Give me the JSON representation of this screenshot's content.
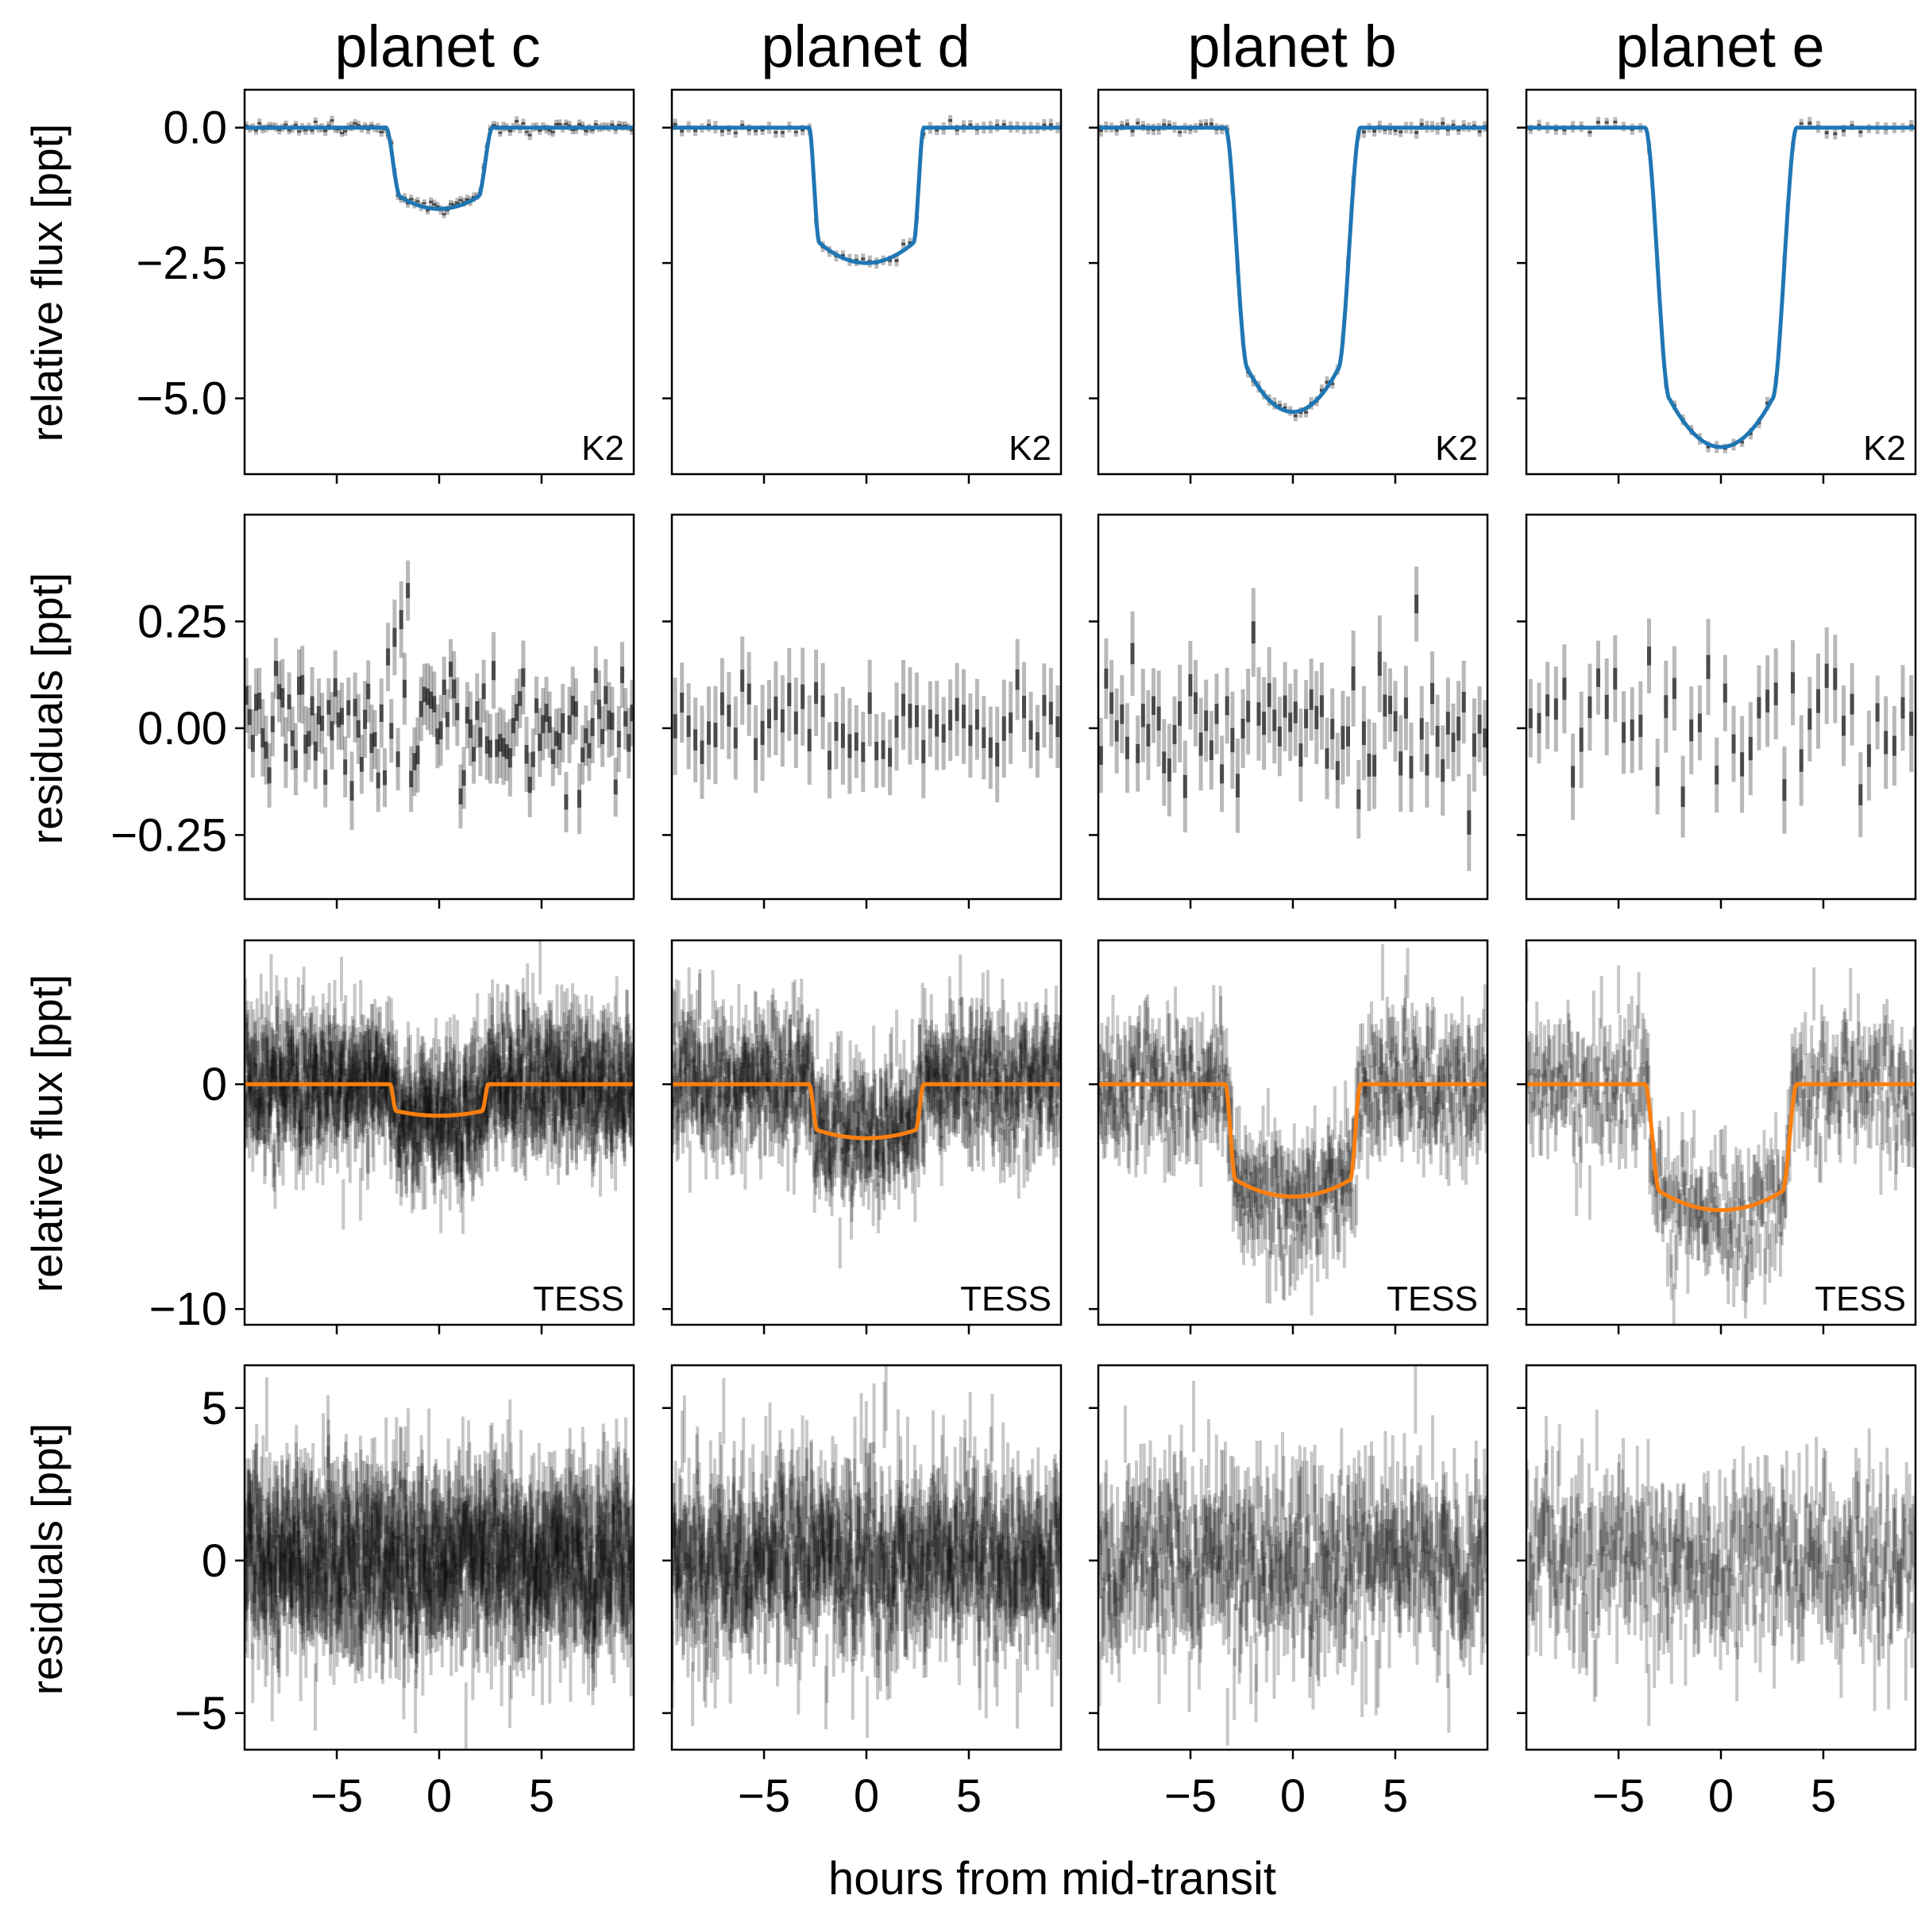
{
  "figure": {
    "xlabel": "hours from mid-transit",
    "columns": [
      "planet c",
      "planet d",
      "planet b",
      "planet e"
    ],
    "row_ylabels": [
      "relative flux [ppt]",
      "residuals [ppt]",
      "relative flux [ppt]",
      "residuals [ppt]"
    ],
    "row_instruments": [
      "K2",
      "",
      "TESS",
      ""
    ],
    "xlim": [
      -9.5,
      9.5
    ],
    "xticks": [
      -5,
      0,
      5
    ],
    "xtick_labels": [
      "−5",
      "0",
      "5"
    ],
    "model_colors": {
      "K2": "#1f77b4",
      "TESS": "#ff7f0e"
    },
    "data_color": "#000000"
  },
  "chart_data": [
    {
      "type": "line",
      "title": "planet c",
      "panel": "K2 transit",
      "instrument": "K2",
      "ylabel": "relative flux [ppt]",
      "xlabel": "",
      "xlim": [
        -9.5,
        9.5
      ],
      "ylim": [
        -6.4,
        0.7
      ],
      "yticks": [
        0.0,
        -2.5,
        -5.0
      ],
      "ytick_labels": [
        "0.0",
        "−2.5",
        "−5.0"
      ],
      "series": [
        {
          "kind": "binned data with error bars",
          "points": 118,
          "err": 0.08
        },
        {
          "kind": "model",
          "color": "#1f77b4",
          "depth": 1.5,
          "t1": 2.6,
          "t2": 1.9
        }
      ]
    },
    {
      "type": "line",
      "title": "planet d",
      "panel": "K2 transit",
      "instrument": "K2",
      "ylabel": "relative flux [ppt]",
      "xlabel": "",
      "xlim": [
        -9.5,
        9.5
      ],
      "ylim": [
        -6.4,
        0.7
      ],
      "yticks": [
        0.0,
        -2.5,
        -5.0
      ],
      "ytick_labels": [
        "0.0",
        "−2.5",
        "−5.0"
      ],
      "series": [
        {
          "kind": "binned data with error bars",
          "points": 58,
          "err": 0.1
        },
        {
          "kind": "model",
          "color": "#1f77b4",
          "depth": 2.5,
          "t1": 2.8,
          "t2": 2.3
        }
      ]
    },
    {
      "type": "line",
      "title": "planet b",
      "panel": "K2 transit",
      "instrument": "K2",
      "ylabel": "relative flux [ppt]",
      "xlabel": "",
      "xlim": [
        -9.5,
        9.5
      ],
      "ylim": [
        -6.4,
        0.7
      ],
      "yticks": [
        0.0,
        -2.5,
        -5.0
      ],
      "ytick_labels": [
        "0.0",
        "−2.5",
        "−5.0"
      ],
      "series": [
        {
          "kind": "binned data with error bars",
          "points": 74,
          "err": 0.1
        },
        {
          "kind": "model",
          "color": "#1f77b4",
          "depth": 5.25,
          "t1": 3.3,
          "t2": 2.2
        }
      ]
    },
    {
      "type": "line",
      "title": "planet e",
      "panel": "K2 transit",
      "instrument": "K2",
      "ylabel": "relative flux [ppt]",
      "xlabel": "",
      "xlim": [
        -9.5,
        9.5
      ],
      "ylim": [
        -6.4,
        0.7
      ],
      "yticks": [
        0.0,
        -2.5,
        -5.0
      ],
      "ytick_labels": [
        "0.0",
        "−2.5",
        "−5.0"
      ],
      "series": [
        {
          "kind": "binned data with error bars",
          "points": 46,
          "err": 0.1
        },
        {
          "kind": "model",
          "color": "#1f77b4",
          "depth": 5.9,
          "t1": 3.7,
          "t2": 2.5
        }
      ]
    },
    {
      "type": "scatter",
      "title": "planet c",
      "panel": "K2 residuals",
      "ylabel": "residuals [ppt]",
      "xlabel": "",
      "xlim": [
        -9.5,
        9.5
      ],
      "ylim": [
        -0.4,
        0.5
      ],
      "yticks": [
        0.25,
        0.0,
        -0.25
      ],
      "ytick_labels": [
        "0.25",
        "0.00",
        "−0.25"
      ],
      "series": [
        {
          "kind": "residuals with error bars",
          "points": 118,
          "scatter": 0.07,
          "err": 0.08
        }
      ]
    },
    {
      "type": "scatter",
      "title": "planet d",
      "panel": "K2 residuals",
      "ylabel": "residuals [ppt]",
      "xlabel": "",
      "xlim": [
        -9.5,
        9.5
      ],
      "ylim": [
        -0.4,
        0.5
      ],
      "yticks": [
        0.25,
        0.0,
        -0.25
      ],
      "ytick_labels": [
        "0.25",
        "0.00",
        "−0.25"
      ],
      "series": [
        {
          "kind": "residuals with error bars",
          "points": 58,
          "scatter": 0.05,
          "err": 0.1
        }
      ]
    },
    {
      "type": "scatter",
      "title": "planet b",
      "panel": "K2 residuals",
      "ylabel": "residuals [ppt]",
      "xlabel": "",
      "xlim": [
        -9.5,
        9.5
      ],
      "ylim": [
        -0.4,
        0.5
      ],
      "yticks": [
        0.25,
        0.0,
        -0.25
      ],
      "ytick_labels": [
        "0.25",
        "0.00",
        "−0.25"
      ],
      "series": [
        {
          "kind": "residuals with error bars",
          "points": 74,
          "scatter": 0.07,
          "err": 0.1
        }
      ]
    },
    {
      "type": "scatter",
      "title": "planet e",
      "panel": "K2 residuals",
      "ylabel": "residuals [ppt]",
      "xlabel": "",
      "xlim": [
        -9.5,
        9.5
      ],
      "ylim": [
        -0.4,
        0.5
      ],
      "yticks": [
        0.25,
        0.0,
        -0.25
      ],
      "ytick_labels": [
        "0.25",
        "0.00",
        "−0.25"
      ],
      "series": [
        {
          "kind": "residuals with error bars",
          "points": 46,
          "scatter": 0.09,
          "err": 0.1
        }
      ]
    },
    {
      "type": "line",
      "title": "planet c",
      "panel": "TESS transit",
      "instrument": "TESS",
      "ylabel": "relative flux [ppt]",
      "xlabel": "",
      "xlim": [
        -9.5,
        9.5
      ],
      "ylim": [
        -10.7,
        6.4
      ],
      "yticks": [
        0,
        -10
      ],
      "ytick_labels": [
        "0",
        "−10"
      ],
      "series": [
        {
          "kind": "data with error bars",
          "points": 1500,
          "scatter": 1.5,
          "err": 1.1
        },
        {
          "kind": "model",
          "color": "#ff7f0e",
          "depth": 1.4,
          "t1": 2.4,
          "t2": 2.1
        }
      ]
    },
    {
      "type": "line",
      "title": "planet d",
      "panel": "TESS transit",
      "instrument": "TESS",
      "ylabel": "relative flux [ppt]",
      "xlabel": "",
      "xlim": [
        -9.5,
        9.5
      ],
      "ylim": [
        -10.7,
        6.4
      ],
      "yticks": [
        0,
        -10
      ],
      "ytick_labels": [
        "0",
        "−10"
      ],
      "series": [
        {
          "kind": "data with error bars",
          "points": 1100,
          "scatter": 1.5,
          "err": 1.1
        },
        {
          "kind": "model",
          "color": "#ff7f0e",
          "depth": 2.4,
          "t1": 2.8,
          "t2": 2.4
        }
      ]
    },
    {
      "type": "line",
      "title": "planet b",
      "panel": "TESS transit",
      "instrument": "TESS",
      "ylabel": "relative flux [ppt]",
      "xlabel": "",
      "xlim": [
        -9.5,
        9.5
      ],
      "ylim": [
        -10.7,
        6.4
      ],
      "yticks": [
        0,
        -10
      ],
      "ytick_labels": [
        "0",
        "−10"
      ],
      "series": [
        {
          "kind": "data with error bars",
          "points": 700,
          "scatter": 1.5,
          "err": 1.1
        },
        {
          "kind": "model",
          "color": "#ff7f0e",
          "depth": 5.0,
          "t1": 3.3,
          "t2": 2.8
        }
      ]
    },
    {
      "type": "line",
      "title": "planet e",
      "panel": "TESS transit",
      "instrument": "TESS",
      "ylabel": "relative flux [ppt]",
      "xlabel": "",
      "xlim": [
        -9.5,
        9.5
      ],
      "ylim": [
        -10.7,
        6.4
      ],
      "yticks": [
        0,
        -10
      ],
      "ytick_labels": [
        "0",
        "−10"
      ],
      "series": [
        {
          "kind": "data with error bars",
          "points": 500,
          "scatter": 1.5,
          "err": 1.1
        },
        {
          "kind": "model",
          "color": "#ff7f0e",
          "depth": 5.6,
          "t1": 3.7,
          "t2": 3.0
        }
      ]
    },
    {
      "type": "scatter",
      "title": "planet c",
      "panel": "TESS residuals",
      "ylabel": "residuals [ppt]",
      "xlabel": "hours from mid-transit",
      "xlim": [
        -9.5,
        9.5
      ],
      "ylim": [
        -6.2,
        6.4
      ],
      "yticks": [
        5,
        0,
        -5
      ],
      "ytick_labels": [
        "5",
        "0",
        "−5"
      ],
      "series": [
        {
          "kind": "residuals with error bars",
          "points": 1500,
          "scatter": 1.5,
          "err": 1.1
        }
      ]
    },
    {
      "type": "scatter",
      "title": "planet d",
      "panel": "TESS residuals",
      "ylabel": "residuals [ppt]",
      "xlabel": "hours from mid-transit",
      "xlim": [
        -9.5,
        9.5
      ],
      "ylim": [
        -6.2,
        6.4
      ],
      "yticks": [
        5,
        0,
        -5
      ],
      "ytick_labels": [
        "5",
        "0",
        "−5"
      ],
      "series": [
        {
          "kind": "residuals with error bars",
          "points": 1100,
          "scatter": 1.5,
          "err": 1.1
        }
      ]
    },
    {
      "type": "scatter",
      "title": "planet b",
      "panel": "TESS residuals",
      "ylabel": "residuals [ppt]",
      "xlabel": "hours from mid-transit",
      "xlim": [
        -9.5,
        9.5
      ],
      "ylim": [
        -6.2,
        6.4
      ],
      "yticks": [
        5,
        0,
        -5
      ],
      "ytick_labels": [
        "5",
        "0",
        "−5"
      ],
      "series": [
        {
          "kind": "residuals with error bars",
          "points": 700,
          "scatter": 1.5,
          "err": 1.1
        }
      ]
    },
    {
      "type": "scatter",
      "title": "planet e",
      "panel": "TESS residuals",
      "ylabel": "residuals [ppt]",
      "xlabel": "hours from mid-transit",
      "xlim": [
        -9.5,
        9.5
      ],
      "ylim": [
        -6.2,
        6.4
      ],
      "yticks": [
        5,
        0,
        -5
      ],
      "ytick_labels": [
        "5",
        "0",
        "−5"
      ],
      "series": [
        {
          "kind": "residuals with error bars",
          "points": 500,
          "scatter": 1.5,
          "err": 1.1
        }
      ]
    }
  ]
}
